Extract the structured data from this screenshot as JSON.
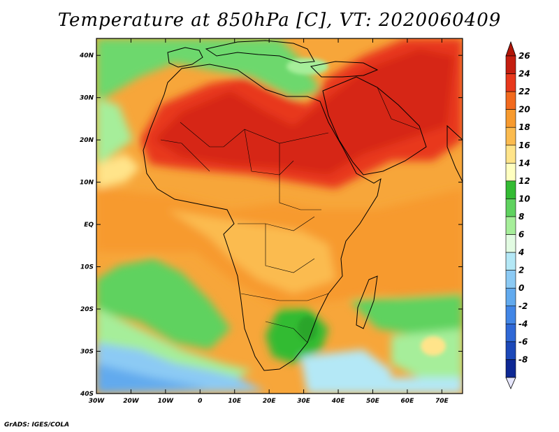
{
  "title": "Temperature at 850hPa [C], VT: 2020060409",
  "credit": "GrADS: IGES/COLA",
  "map": {
    "lon_range": [
      -30,
      76
    ],
    "lat_range": [
      -40,
      44
    ],
    "lat_ticks": [
      {
        "value": 40,
        "label": "40N"
      },
      {
        "value": 30,
        "label": "30N"
      },
      {
        "value": 20,
        "label": "20N"
      },
      {
        "value": 10,
        "label": "10N"
      },
      {
        "value": 0,
        "label": "EQ"
      },
      {
        "value": -10,
        "label": "10S"
      },
      {
        "value": -20,
        "label": "20S"
      },
      {
        "value": -30,
        "label": "30S"
      },
      {
        "value": -40,
        "label": "40S"
      }
    ],
    "lon_ticks": [
      {
        "value": -30,
        "label": "30W"
      },
      {
        "value": -20,
        "label": "20W"
      },
      {
        "value": -10,
        "label": "10W"
      },
      {
        "value": 0,
        "label": "0"
      },
      {
        "value": 10,
        "label": "10E"
      },
      {
        "value": 20,
        "label": "20E"
      },
      {
        "value": 30,
        "label": "30E"
      },
      {
        "value": 40,
        "label": "40E"
      },
      {
        "value": 50,
        "label": "50E"
      },
      {
        "value": 60,
        "label": "60E"
      },
      {
        "value": 70,
        "label": "70E"
      }
    ]
  },
  "colorbar": {
    "levels": [
      {
        "label": "26",
        "color": "#c41e10"
      },
      {
        "label": "24",
        "color": "#e8381c"
      },
      {
        "label": "22",
        "color": "#f26a1e"
      },
      {
        "label": "20",
        "color": "#f79a2e"
      },
      {
        "label": "18",
        "color": "#fbbb4f"
      },
      {
        "label": "16",
        "color": "#ffe48a"
      },
      {
        "label": "14",
        "color": "#ffffc0"
      },
      {
        "label": "12",
        "color": "#33bb33"
      },
      {
        "label": "10",
        "color": "#5fd25f"
      },
      {
        "label": "8",
        "color": "#a6ee9a"
      },
      {
        "label": "6",
        "color": "#e2fbe2"
      },
      {
        "label": "4",
        "color": "#b4e8f6"
      },
      {
        "label": "2",
        "color": "#8ccaf4"
      },
      {
        "label": "0",
        "color": "#62aaee"
      },
      {
        "label": "-2",
        "color": "#4286e6"
      },
      {
        "label": "-4",
        "color": "#2f68d6"
      },
      {
        "label": "-6",
        "color": "#1c48b8"
      },
      {
        "label": "-8",
        "color": "#0e2894"
      }
    ],
    "top_color": "#b01508",
    "bottom_color": "#e6e6fb"
  }
}
